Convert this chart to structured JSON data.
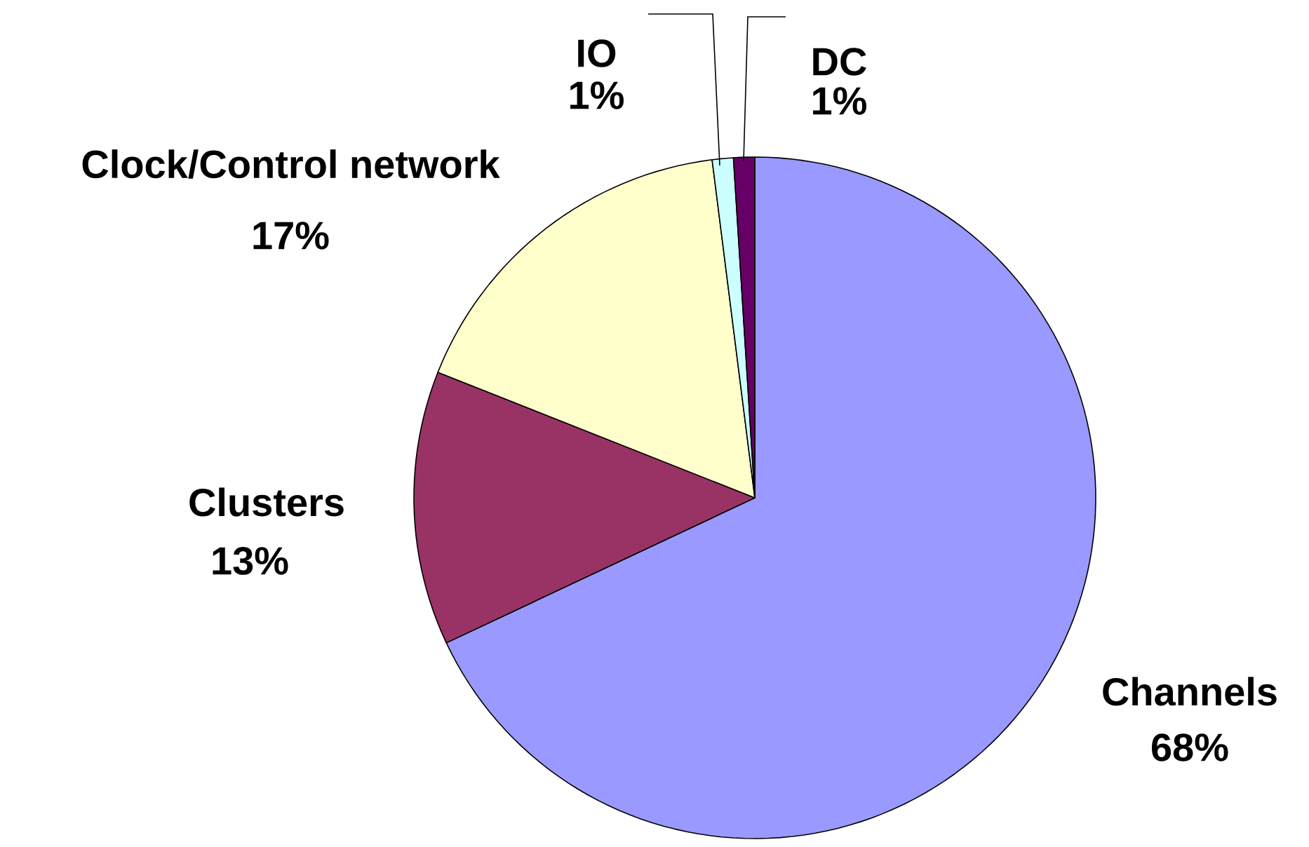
{
  "chart_data": {
    "type": "pie",
    "categories": [
      "Channels",
      "Clusters",
      "Clock/Control network",
      "IO",
      "DC"
    ],
    "values": [
      68,
      13,
      17,
      1,
      1
    ],
    "value_labels": [
      "68%",
      "13%",
      "17%",
      "1%",
      "1%"
    ],
    "colors": [
      "#9999ff",
      "#993366",
      "#ffffcc",
      "#ccffff",
      "#660066"
    ]
  }
}
